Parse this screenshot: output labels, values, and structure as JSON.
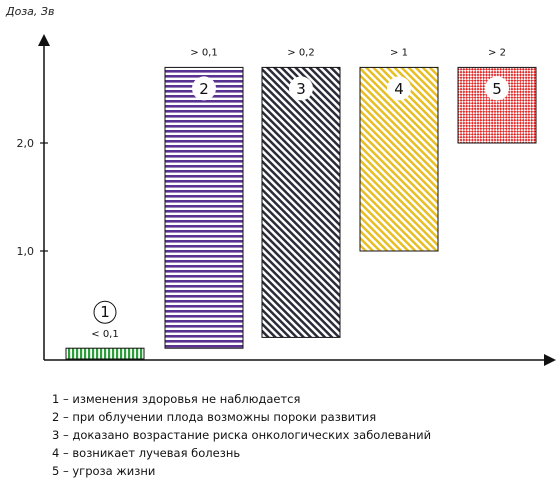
{
  "chart_data": {
    "type": "bar",
    "ylabel": "Доза, Зв",
    "yticks": [
      {
        "value": 1.0,
        "label": "1,0"
      },
      {
        "value": 2.0,
        "label": "2,0"
      }
    ],
    "ylim": [
      0,
      2.7
    ],
    "bars": [
      {
        "id": "1",
        "low": 0.0,
        "high": 0.1,
        "caption": "< 0,1",
        "color": "#2e9e3a",
        "pattern": "vertical",
        "label_style": "circle-above"
      },
      {
        "id": "2",
        "low": 0.1,
        "high": 2.7,
        "caption": "> 0,1",
        "color": "#5a3291",
        "pattern": "horizontal",
        "label_style": "circle-inside"
      },
      {
        "id": "3",
        "low": 0.2,
        "high": 2.7,
        "caption": "> 0,2",
        "color": "#2b2b3a",
        "pattern": "diagonal",
        "label_style": "circle-inside"
      },
      {
        "id": "4",
        "low": 1.0,
        "high": 2.7,
        "caption": "> 1",
        "color": "#e8be25",
        "pattern": "diagonal",
        "label_style": "circle-inside"
      },
      {
        "id": "5",
        "low": 2.0,
        "high": 2.7,
        "caption": "> 2",
        "color": "#e02828",
        "pattern": "checker",
        "label_style": "circle-inside"
      }
    ]
  },
  "legend": [
    "1 – изменения здоровья не наблюдается",
    "2 – при облучении плода возможны пороки развития",
    "3 – доказано возрастание риска онкологических заболеваний",
    "4 – возникает лучевая болезнь",
    "5 – угроза жизни"
  ]
}
